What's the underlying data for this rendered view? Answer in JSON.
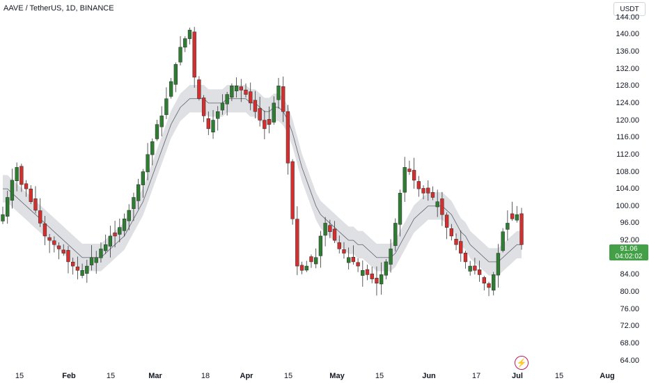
{
  "header": {
    "symbol_title": "AAVE / TetherUS, 1D, BINANCE"
  },
  "currency_button": {
    "label": "USDT"
  },
  "price_axis": {
    "ticks": [
      "144.00",
      "140.00",
      "136.00",
      "132.00",
      "128.00",
      "124.00",
      "120.00",
      "116.00",
      "112.00",
      "108.00",
      "104.00",
      "100.00",
      "96.00",
      "92.00",
      "88.00",
      "84.00",
      "80.00",
      "76.00",
      "72.00",
      "68.00",
      "64.00"
    ]
  },
  "last_price": {
    "value": "91.06",
    "countdown": "04:02:02",
    "color": "#43a047"
  },
  "time_axis": {
    "labels": [
      {
        "text": "15",
        "month": false
      },
      {
        "text": "Feb",
        "month": true
      },
      {
        "text": "15",
        "month": false
      },
      {
        "text": "Mar",
        "month": true
      },
      {
        "text": "18",
        "month": false
      },
      {
        "text": "Apr",
        "month": true
      },
      {
        "text": "15",
        "month": false
      },
      {
        "text": "May",
        "month": true
      },
      {
        "text": "15",
        "month": false
      },
      {
        "text": "Jun",
        "month": true
      },
      {
        "text": "17",
        "month": false
      },
      {
        "text": "Jul",
        "month": true
      },
      {
        "text": "15",
        "month": false
      },
      {
        "text": "Aug",
        "month": true
      }
    ]
  },
  "icons": {
    "bolt": "lightning-bolt-icon"
  },
  "colors": {
    "up": "#2e7d32",
    "down": "#d32f2f",
    "band": "#d9dadf",
    "ma": "#6b6f7a"
  },
  "chart_data": {
    "type": "candlestick",
    "ylim": [
      62,
      148
    ],
    "yticks": [
      144,
      140,
      136,
      132,
      128,
      124,
      120,
      116,
      112,
      108,
      104,
      100,
      96,
      92,
      88,
      84,
      80,
      76,
      72,
      68,
      64
    ],
    "close_path": [
      98,
      102,
      106,
      109,
      105,
      104,
      101,
      99,
      96,
      93,
      92,
      91,
      90,
      89,
      87,
      86,
      85,
      85,
      86,
      88,
      88,
      90,
      91,
      93,
      93,
      95,
      97,
      99,
      102,
      105,
      108,
      112,
      115,
      119,
      121,
      125,
      129,
      133,
      137,
      139,
      141,
      130,
      125,
      121,
      118,
      120,
      122,
      124,
      126,
      128,
      128,
      127,
      126,
      124,
      122,
      120,
      118,
      119,
      124,
      128,
      122,
      110,
      97,
      86,
      85,
      86,
      87,
      88,
      93,
      96,
      94,
      92,
      90,
      89,
      88,
      87,
      86,
      85,
      84,
      83,
      82,
      84,
      87,
      90,
      96,
      103,
      109,
      108,
      106,
      104,
      103,
      103,
      102,
      101,
      98,
      95,
      93,
      91,
      89,
      87,
      86,
      85,
      84,
      82,
      81,
      84,
      89,
      94,
      96,
      97,
      98,
      91
    ],
    "ma_path": [
      104,
      104,
      103,
      102,
      101,
      100,
      99,
      98,
      97,
      96,
      95,
      94,
      93,
      92,
      91,
      90,
      89,
      88,
      88,
      88,
      88,
      88,
      89,
      90,
      91,
      92,
      93,
      95,
      97,
      99,
      101,
      104,
      107,
      110,
      113,
      116,
      119,
      121,
      123,
      124,
      125,
      125,
      125,
      125,
      124,
      124,
      124,
      124,
      125,
      125,
      125,
      125,
      125,
      124,
      124,
      123,
      122,
      122,
      123,
      123,
      122,
      120,
      117,
      113,
      109,
      106,
      103,
      100,
      98,
      97,
      96,
      95,
      94,
      93,
      92,
      92,
      91,
      91,
      90,
      89,
      88,
      88,
      88,
      88,
      89,
      91,
      93,
      95,
      97,
      98,
      99,
      100,
      100,
      100,
      100,
      99,
      98,
      96,
      94,
      93,
      91,
      90,
      89,
      88,
      87,
      87,
      87,
      88,
      89,
      90,
      91,
      91
    ],
    "x_month_labels": [
      "15",
      "Feb",
      "15",
      "Mar",
      "18",
      "Apr",
      "15",
      "May",
      "15",
      "Jun",
      "17",
      "Jul",
      "15",
      "Aug"
    ]
  }
}
